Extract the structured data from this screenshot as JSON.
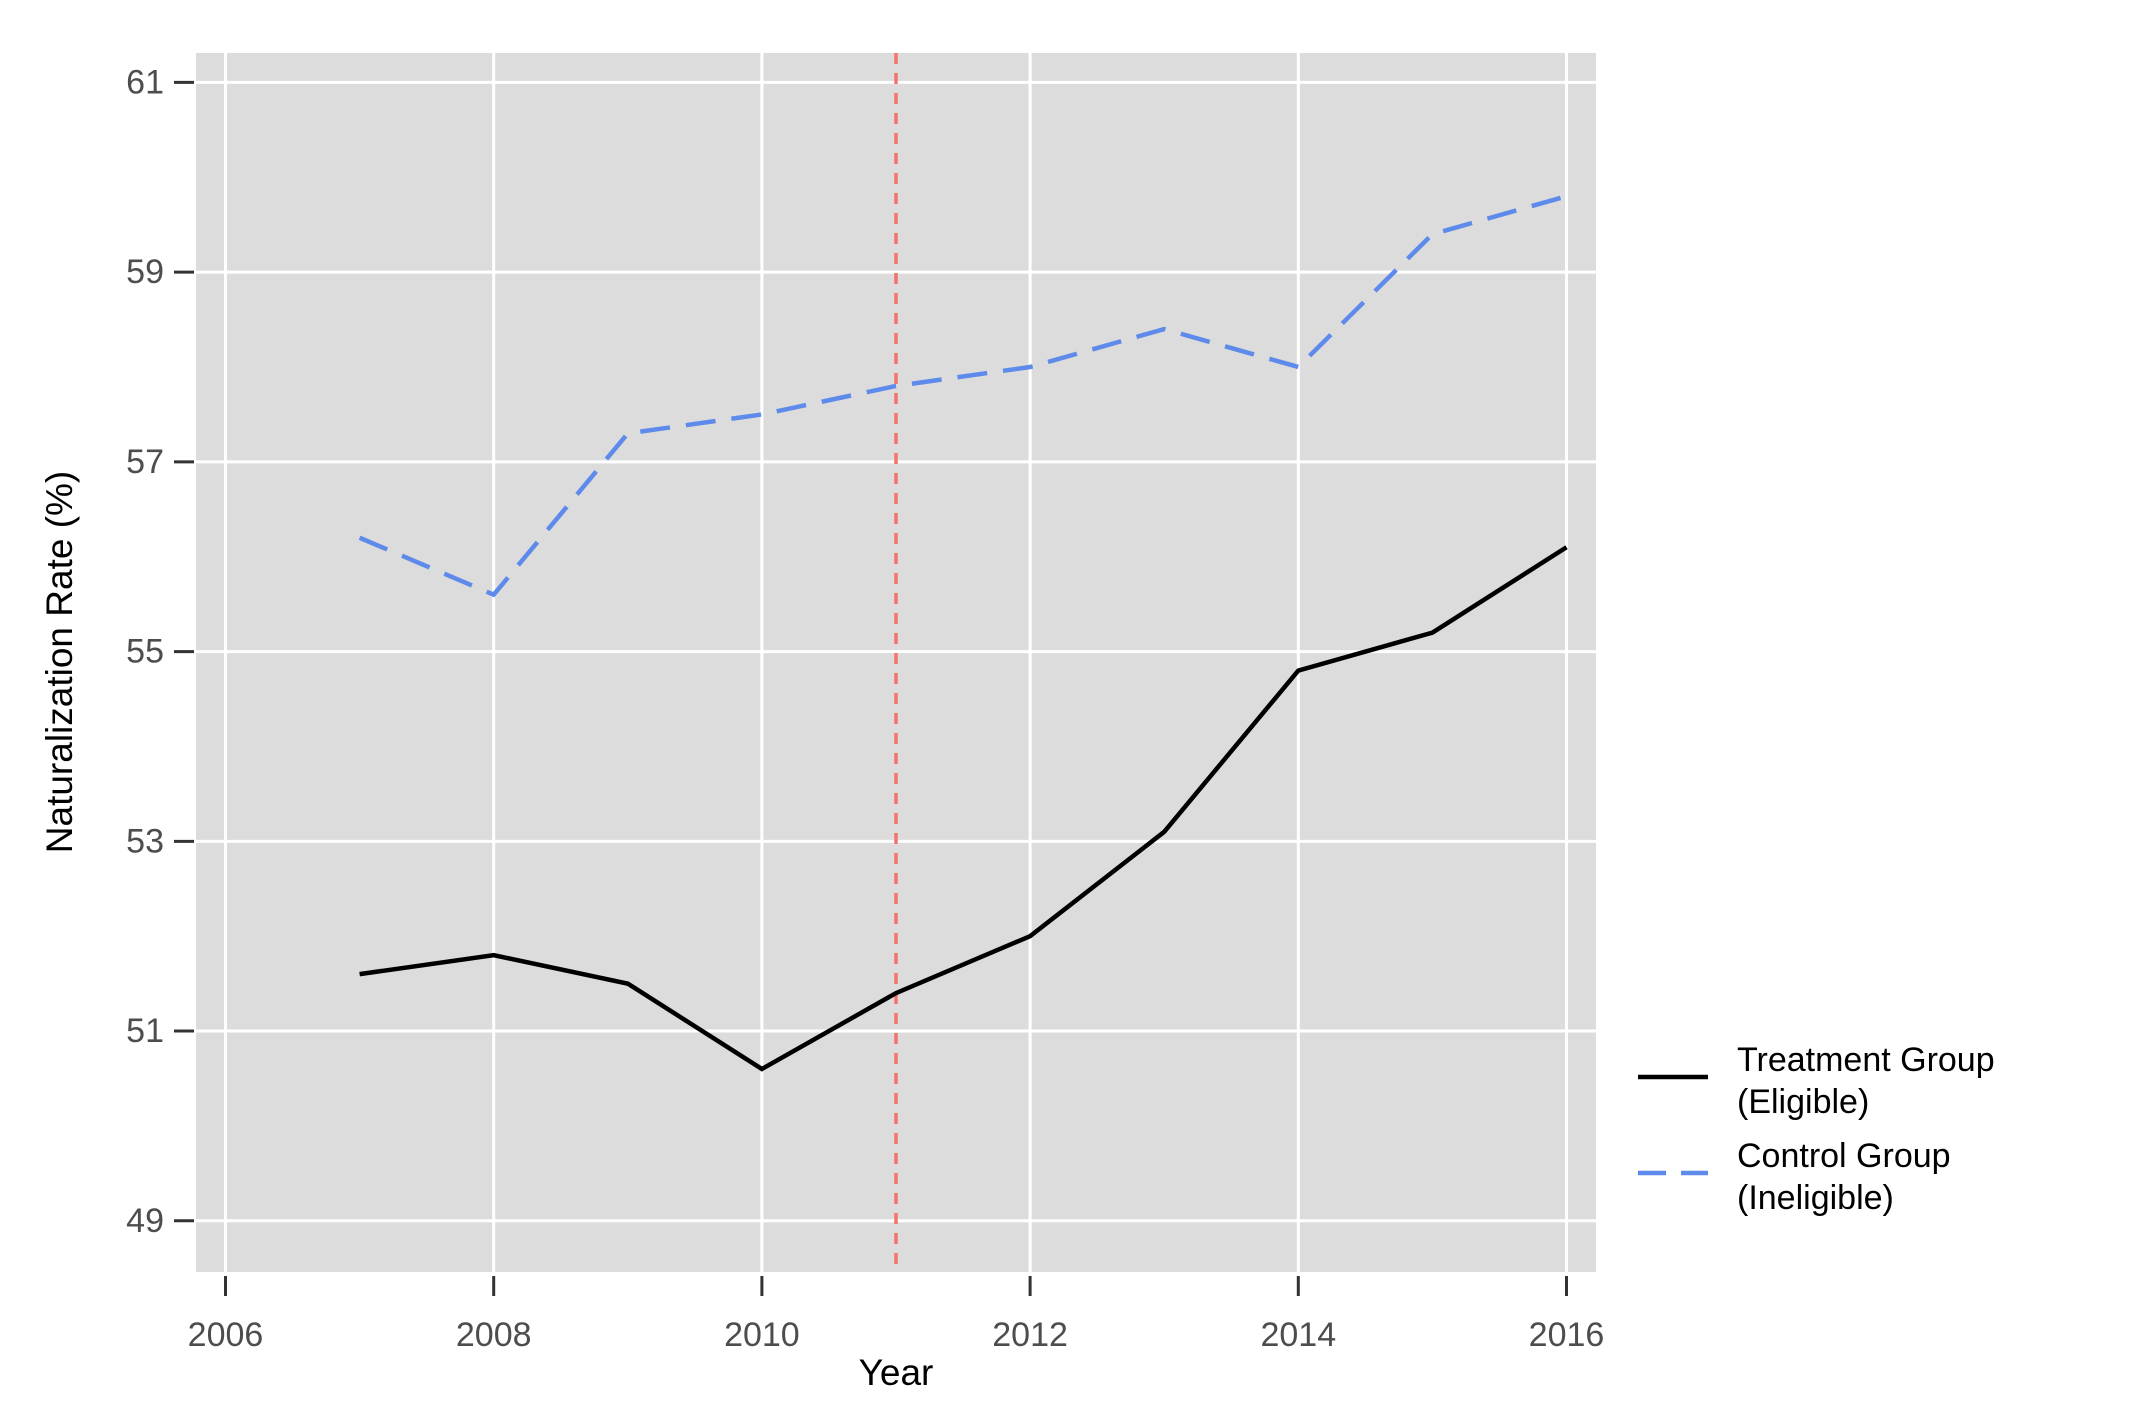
{
  "chart_data": {
    "type": "line",
    "title": "",
    "xlabel": "Year",
    "ylabel": "Naturalization Rate (%)",
    "x": [
      2007,
      2008,
      2009,
      2010,
      2011,
      2012,
      2013,
      2014,
      2015,
      2016
    ],
    "series": [
      {
        "name": "Treatment Group (Eligible)",
        "label_lines": [
          "Treatment Group",
          "(Eligible)"
        ],
        "color": "#000000",
        "dash": "solid",
        "values": [
          51.6,
          51.8,
          51.5,
          50.6,
          51.4,
          52.0,
          53.1,
          54.8,
          55.2,
          56.1
        ]
      },
      {
        "name": "Control Group (Ineligible)",
        "label_lines": [
          "Control Group",
          "(Ineligible)"
        ],
        "color": "#5E8BEB",
        "dash": "dashed",
        "values": [
          56.2,
          55.6,
          57.3,
          57.5,
          57.8,
          58.0,
          58.4,
          58.0,
          59.4,
          59.8
        ]
      }
    ],
    "x_ticks": [
      2006,
      2008,
      2010,
      2012,
      2014,
      2016
    ],
    "y_ticks": [
      49,
      51,
      53,
      55,
      57,
      59,
      61
    ],
    "xlim": [
      2005.78,
      2016.22
    ],
    "ylim": [
      48.46,
      61.31
    ],
    "grid": "major-only",
    "legend_position": "right-bottom",
    "vline": {
      "x": 2011,
      "style": "dashed",
      "color": "#F4726B"
    },
    "colors": {
      "panel_bg": "#DCDCDC",
      "grid": "#FFFFFF",
      "tick_mark": "#333333",
      "tick_label": "#4D4D4D",
      "axis_title": "#000000",
      "legend_text": "#000000"
    }
  }
}
